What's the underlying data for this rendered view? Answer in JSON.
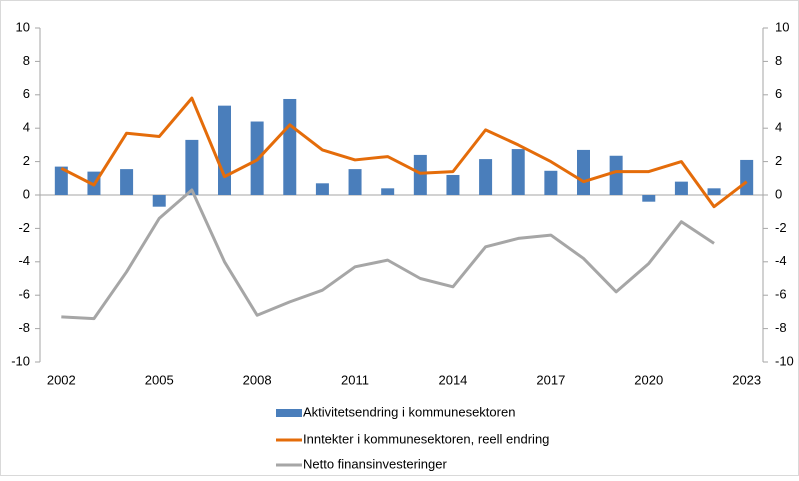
{
  "chart_data": {
    "type": "bar",
    "categories": [
      "2002",
      null,
      null,
      "2005",
      null,
      null,
      "2008",
      null,
      null,
      "2011",
      null,
      null,
      "2014",
      null,
      null,
      "2017",
      null,
      null,
      "2020",
      null,
      null,
      "2023"
    ],
    "series": [
      {
        "name": "Aktivitetsendring i kommunesektoren",
        "type": "bar",
        "color": "#4a7ebb",
        "values": [
          1.7,
          1.4,
          1.55,
          -0.7,
          3.3,
          5.35,
          4.4,
          5.75,
          0.7,
          1.55,
          0.4,
          2.4,
          1.2,
          2.15,
          2.75,
          1.45,
          2.7,
          2.35,
          -0.4,
          0.8,
          0.4,
          2.1
        ]
      },
      {
        "name": "Inntekter i kommunesektoren, reell endring",
        "type": "line",
        "color": "#e46c0a",
        "values": [
          1.6,
          0.6,
          3.7,
          3.5,
          5.8,
          1.1,
          2.1,
          4.2,
          2.7,
          2.1,
          2.3,
          1.3,
          1.4,
          3.9,
          3.0,
          2.0,
          0.8,
          1.4,
          1.4,
          2.0,
          -0.7,
          0.8
        ]
      },
      {
        "name": "Netto finansinvesteringer",
        "type": "line",
        "color": "#a6a6a6",
        "values": [
          -7.3,
          -7.4,
          -4.6,
          -1.4,
          0.3,
          -4.0,
          -7.2,
          -6.4,
          -5.7,
          -4.3,
          -3.9,
          -5.0,
          -5.5,
          -3.1,
          -2.6,
          -2.4,
          -3.8,
          -5.8,
          -4.1,
          -1.6,
          -2.9,
          null
        ]
      }
    ],
    "ylim": [
      -10,
      10
    ],
    "yticks": [
      -10,
      -8,
      -6,
      -4,
      -2,
      0,
      2,
      4,
      6,
      8,
      10
    ],
    "y2lim": [
      -10,
      10
    ],
    "y2ticks": [
      -10,
      -8,
      -6,
      -4,
      -2,
      0,
      2,
      4,
      6,
      8,
      10
    ],
    "legend": "bottom"
  }
}
